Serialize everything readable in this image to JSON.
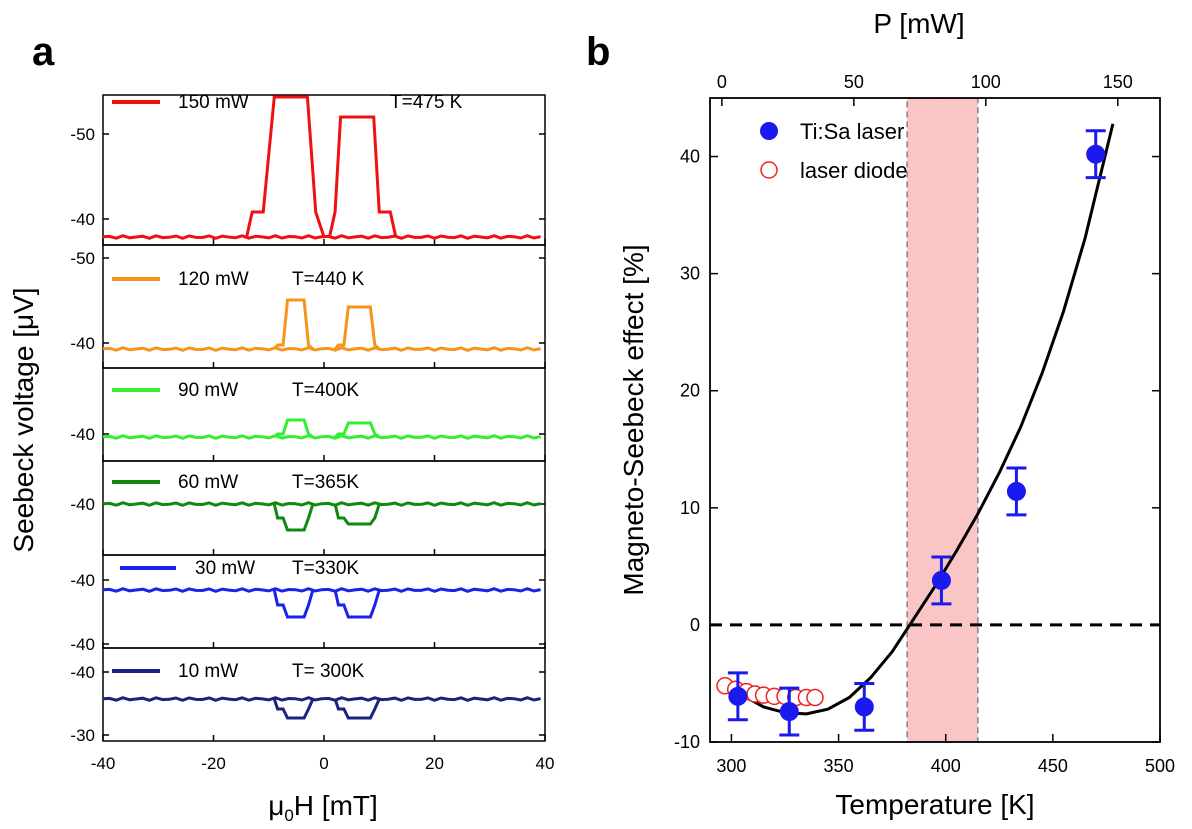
{
  "chart_data": [
    {
      "type": "line",
      "panel_label": "a",
      "xlabel_main": "μ",
      "xlabel_sub": "0",
      "xlabel_rest": "H [mT]",
      "ylabel": "Seebeck voltage [μV]",
      "xlim": [
        -40,
        40
      ],
      "x_ticks": [
        "-40",
        "-20",
        "0",
        "20",
        "40"
      ],
      "grid": false,
      "panels": [
        {
          "power": "150 mW",
          "temperature": "T=475 K",
          "color": "#ee1111",
          "y_ticks": [
            "-50",
            "-40"
          ],
          "y_tick_values": [
            -50,
            -40
          ],
          "ylim": [
            -38.5,
            -55.5
          ],
          "baseline": -39.3,
          "loop_level": -54.3,
          "step_level": -41.5,
          "shape": "peaks"
        },
        {
          "power": "120 mW",
          "temperature": "T=440 K",
          "color": "#f7941d",
          "y_ticks": [
            "-50",
            "-40"
          ],
          "y_tick_values": [
            -50,
            -40
          ],
          "ylim": [
            -37.5,
            -51
          ],
          "baseline": -39.5,
          "loop_level": -45.5,
          "step_level": -40.6,
          "shape": "peaks"
        },
        {
          "power": "90 mW",
          "temperature": "T=400K",
          "color": "#33ee33",
          "y_ticks": [
            "-40"
          ],
          "y_tick_values": [
            -40
          ],
          "ylim": [
            -35,
            -55
          ],
          "baseline": -39.9,
          "loop_level": -41.8,
          "step_level": -40.4,
          "shape": "peaks"
        },
        {
          "power": "60 mW",
          "temperature": "T=365K",
          "color": "#118811",
          "y_ticks": [
            "-40"
          ],
          "y_tick_values": [
            -40
          ],
          "ylim": [
            -43,
            -43.1
          ],
          "baseline": -40,
          "loop_level": -40,
          "step_level": -40,
          "shape": "dips"
        },
        {
          "power": "30 mW",
          "temperature": "T=330K",
          "color": "#1a22ee",
          "y_ticks": [
            "-40",
            "-40"
          ],
          "y_tick_values": [
            -40,
            -40
          ],
          "ylim": [
            -43,
            -43.1
          ],
          "baseline": -40,
          "loop_level": -40,
          "step_level": -40,
          "shape": "dips"
        },
        {
          "power": "10 mW",
          "temperature": "T= 300K",
          "color": "#1a237e",
          "y_ticks": [
            "-40",
            "-30"
          ],
          "y_tick_values": [
            -40,
            -30
          ],
          "ylim": [
            -43,
            -43.1
          ],
          "baseline": -40,
          "loop_level": -40,
          "step_level": -40,
          "shape": "dips"
        }
      ]
    },
    {
      "type": "scatter",
      "panel_label": "b",
      "xlabel": "Temperature [K]",
      "ylabel": "Magneto-Seebeck effect [%]",
      "top_xlabel": "P [mW]",
      "xlim": [
        290,
        500
      ],
      "ylim": [
        -10,
        45
      ],
      "top_xlim": [
        -4.5,
        166
      ],
      "x_ticks": [
        300,
        350,
        400,
        450,
        500
      ],
      "y_ticks": [
        -10,
        0,
        10,
        20,
        30,
        40
      ],
      "top_ticks": [
        0,
        50,
        100,
        150
      ],
      "grid": false,
      "legend_position": "top-left",
      "series": [
        {
          "name": "Ti:Sa laser",
          "marker": "filled-circle",
          "color": "#1a1aee",
          "x": [
            303,
            327,
            362,
            398,
            433,
            470
          ],
          "y": [
            -6.1,
            -7.4,
            -7.0,
            3.8,
            11.4,
            40.2
          ],
          "err": [
            2.0,
            2.0,
            2.0,
            2.0,
            2.0,
            2.0
          ]
        },
        {
          "name": "laser diode",
          "marker": "open-circle",
          "color": "#ee2222",
          "x": [
            297,
            302,
            307,
            311,
            315,
            320,
            325,
            330,
            335,
            339
          ],
          "y": [
            -5.2,
            -5.5,
            -5.7,
            -5.9,
            -6.0,
            -6.1,
            -6.1,
            -6.2,
            -6.2,
            -6.2
          ]
        },
        {
          "name": "",
          "type": "line",
          "color": "#000000",
          "x": [
            303,
            315,
            325,
            335,
            345,
            355,
            365,
            375,
            385,
            395,
            405,
            415,
            425,
            435,
            445,
            455,
            465,
            478
          ],
          "y": [
            -5.8,
            -7.0,
            -7.5,
            -7.6,
            -7.2,
            -6.2,
            -4.5,
            -2.3,
            0.5,
            3.3,
            6.3,
            9.5,
            13.0,
            16.9,
            21.5,
            26.8,
            33.0,
            42.8
          ]
        },
        {
          "name": "",
          "type": "dashed-line",
          "color": "#000000",
          "x": [
            290,
            500
          ],
          "y": [
            0,
            0
          ]
        }
      ],
      "shaded_region": {
        "x": [
          382,
          415
        ],
        "color": "#f9c5c5"
      }
    }
  ]
}
